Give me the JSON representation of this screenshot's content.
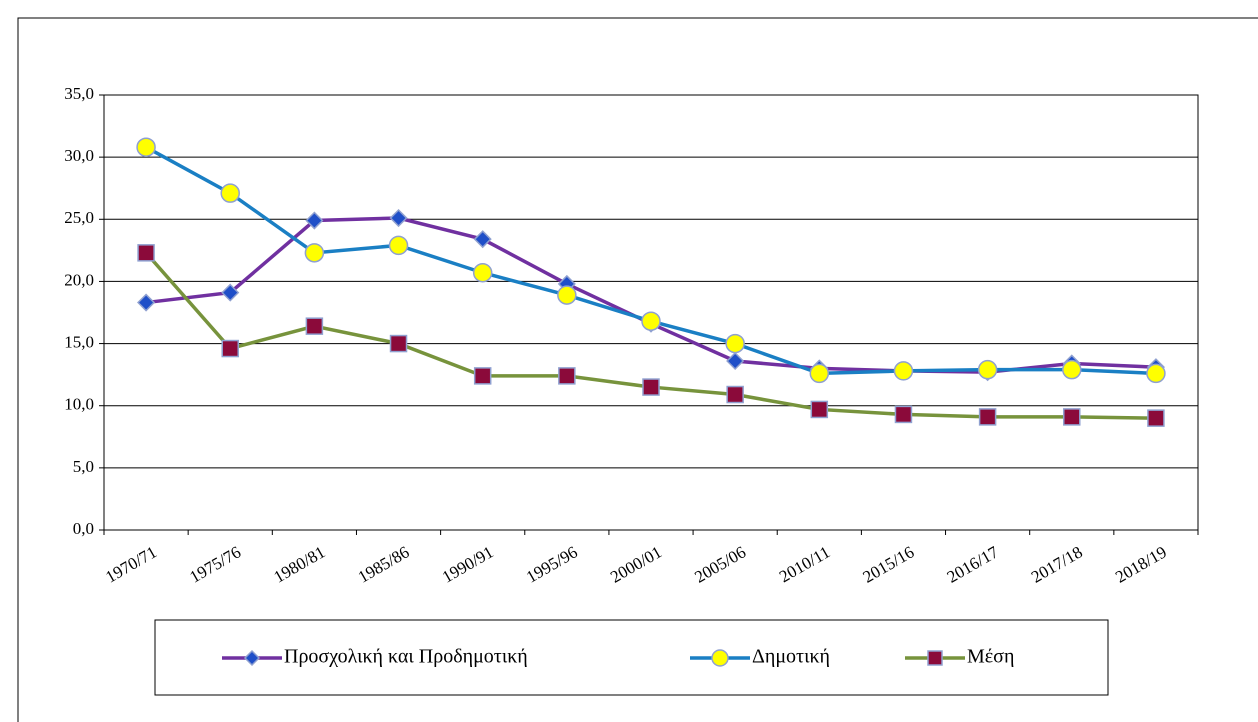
{
  "chart_data": {
    "type": "line",
    "categories": [
      "1970/71",
      "1975/76",
      "1980/81",
      "1985/86",
      "1990/91",
      "1995/96",
      "2000/01",
      "2005/06",
      "2010/11",
      "2015/16",
      "2016/17",
      "2017/18",
      "2018/19"
    ],
    "series": [
      {
        "name": "Προσχολική και Προδημοτική",
        "color": "#7030a0",
        "marker": "diamond",
        "marker_color": "#1f4fc8",
        "values": [
          18.3,
          19.1,
          24.9,
          25.1,
          23.4,
          19.8,
          16.6,
          13.6,
          13.0,
          12.8,
          12.7,
          13.4,
          13.1
        ]
      },
      {
        "name": "Δημοτική",
        "color": "#1a7fc4",
        "marker": "circle",
        "marker_color": "#ffff00",
        "values": [
          30.8,
          27.1,
          22.3,
          22.9,
          20.7,
          18.9,
          16.8,
          15.0,
          12.6,
          12.8,
          12.9,
          12.9,
          12.6
        ]
      },
      {
        "name": "Μέση",
        "color": "#77933c",
        "marker": "square",
        "marker_color": "#8b0a3a",
        "values": [
          22.3,
          14.6,
          16.4,
          15.0,
          12.4,
          12.4,
          11.5,
          10.9,
          9.7,
          9.3,
          9.1,
          9.1,
          9.0
        ]
      }
    ],
    "ylim": [
      0,
      35
    ],
    "yticks": [
      {
        "value": 0,
        "label": "0,0"
      },
      {
        "value": 5,
        "label": "5,0"
      },
      {
        "value": 10,
        "label": "10,0"
      },
      {
        "value": 15,
        "label": "15,0"
      },
      {
        "value": 20,
        "label": "20,0"
      },
      {
        "value": 25,
        "label": "25,0"
      },
      {
        "value": 30,
        "label": "30,0"
      },
      {
        "value": 35,
        "label": "35,0"
      }
    ],
    "grid": true
  }
}
